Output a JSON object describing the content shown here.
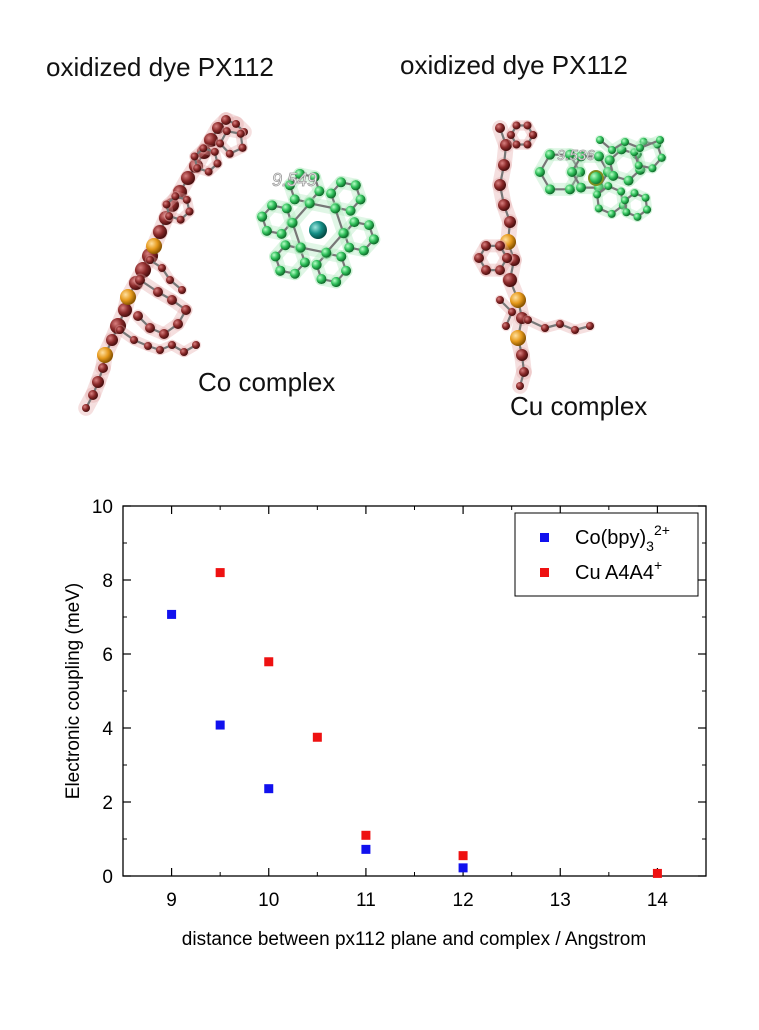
{
  "top_panel": {
    "left_title": "oxidized dye PX112",
    "right_title": "oxidized dye PX112",
    "left_complex": "Co complex",
    "right_complex": "Cu complex",
    "left_distance": "9.549",
    "right_distance": "9.536",
    "colors": {
      "dye": "#8b2a2a",
      "co_complex": "#2fbf5a",
      "cu_complex": "#2fbf5a",
      "sulfur": "#e69a1c"
    }
  },
  "chart_data": {
    "type": "scatter",
    "xlabel": "distance between px112 plane and complex / Angstrom",
    "ylabel": "Electronic coupling (meV)",
    "xlim": [
      8.5,
      14.5
    ],
    "ylim": [
      0,
      10
    ],
    "xticks": [
      "9",
      "10",
      "11",
      "12",
      "13",
      "14"
    ],
    "yticks": [
      "0",
      "2",
      "4",
      "6",
      "8",
      "10"
    ],
    "legend_position": "top-right",
    "series": [
      {
        "name": "Co(bpy)3 2+",
        "name_base": "Co(bpy)",
        "name_sub": "3",
        "name_sup": "2+",
        "color": "#1111ee",
        "points": [
          [
            9.0,
            7.07
          ],
          [
            9.5,
            4.08
          ],
          [
            10.0,
            2.36
          ],
          [
            11.0,
            0.72
          ],
          [
            12.0,
            0.22
          ]
        ]
      },
      {
        "name": "Cu A4A4 +",
        "name_base": "Cu A4A4",
        "name_sub": "",
        "name_sup": "+",
        "color": "#ee1111",
        "points": [
          [
            9.5,
            8.2
          ],
          [
            10.0,
            5.79
          ],
          [
            10.5,
            3.75
          ],
          [
            11.0,
            1.1
          ],
          [
            12.0,
            0.55
          ],
          [
            14.0,
            0.07
          ]
        ]
      }
    ]
  }
}
